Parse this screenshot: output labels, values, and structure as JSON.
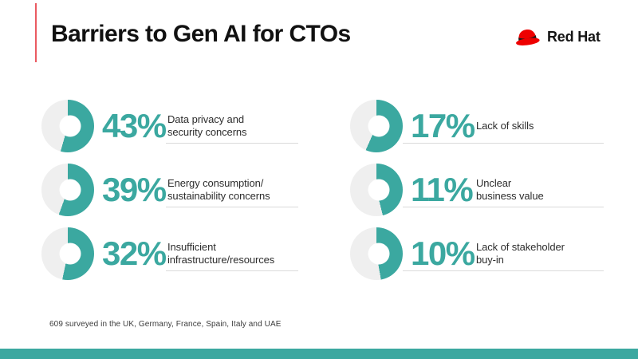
{
  "header": {
    "title": "Barriers to Gen AI for CTOs",
    "brand": "Red Hat"
  },
  "footer": {
    "note": "609 surveyed in the UK, Germany, France, Spain, Italy and UAE"
  },
  "colors": {
    "teal": "#3BA8A0",
    "ring_gray": "#EFEFEF",
    "redhat_red": "#EE0000",
    "accent_line_red": "#EA5A61",
    "title_text": "#111111",
    "label_text": "#2D2D2D",
    "rule_gray": "#DADADA"
  },
  "chart_data": {
    "type": "pie",
    "subtype": "donut-indicator-set",
    "title": "Barriers to Gen AI for CTOs",
    "unit": "%",
    "legend": false,
    "items": [
      {
        "label": "Data privacy and security concerns",
        "value": 43,
        "display": "43%",
        "label_lines": [
          "Data privacy and",
          "security concerns"
        ],
        "ring_sweep_deg": 196
      },
      {
        "label": "Energy consumption/sustainability concerns",
        "value": 39,
        "display": "39%",
        "label_lines": [
          "Energy consumption/",
          "sustainability concerns"
        ],
        "ring_sweep_deg": 200
      },
      {
        "label": "Insufficient infrastructure/resources",
        "value": 32,
        "display": "32%",
        "label_lines": [
          "Insufficient",
          "infrastructure/resources"
        ],
        "ring_sweep_deg": 192
      },
      {
        "label": "Lack of skills",
        "value": 17,
        "display": "17%",
        "label_lines": [
          "Lack of skills"
        ],
        "ring_sweep_deg": 204
      },
      {
        "label": "Unclear business value",
        "value": 11,
        "display": "11%",
        "label_lines": [
          "Unclear",
          "business value"
        ],
        "ring_sweep_deg": 166
      },
      {
        "label": "Lack of stakeholder buy-in",
        "value": 10,
        "display": "10%",
        "label_lines": [
          "Lack of stakeholder",
          "buy-in"
        ],
        "ring_sweep_deg": 170
      }
    ],
    "note": "609 surveyed in the UK, Germany, France, Spain, Italy and UAE"
  }
}
